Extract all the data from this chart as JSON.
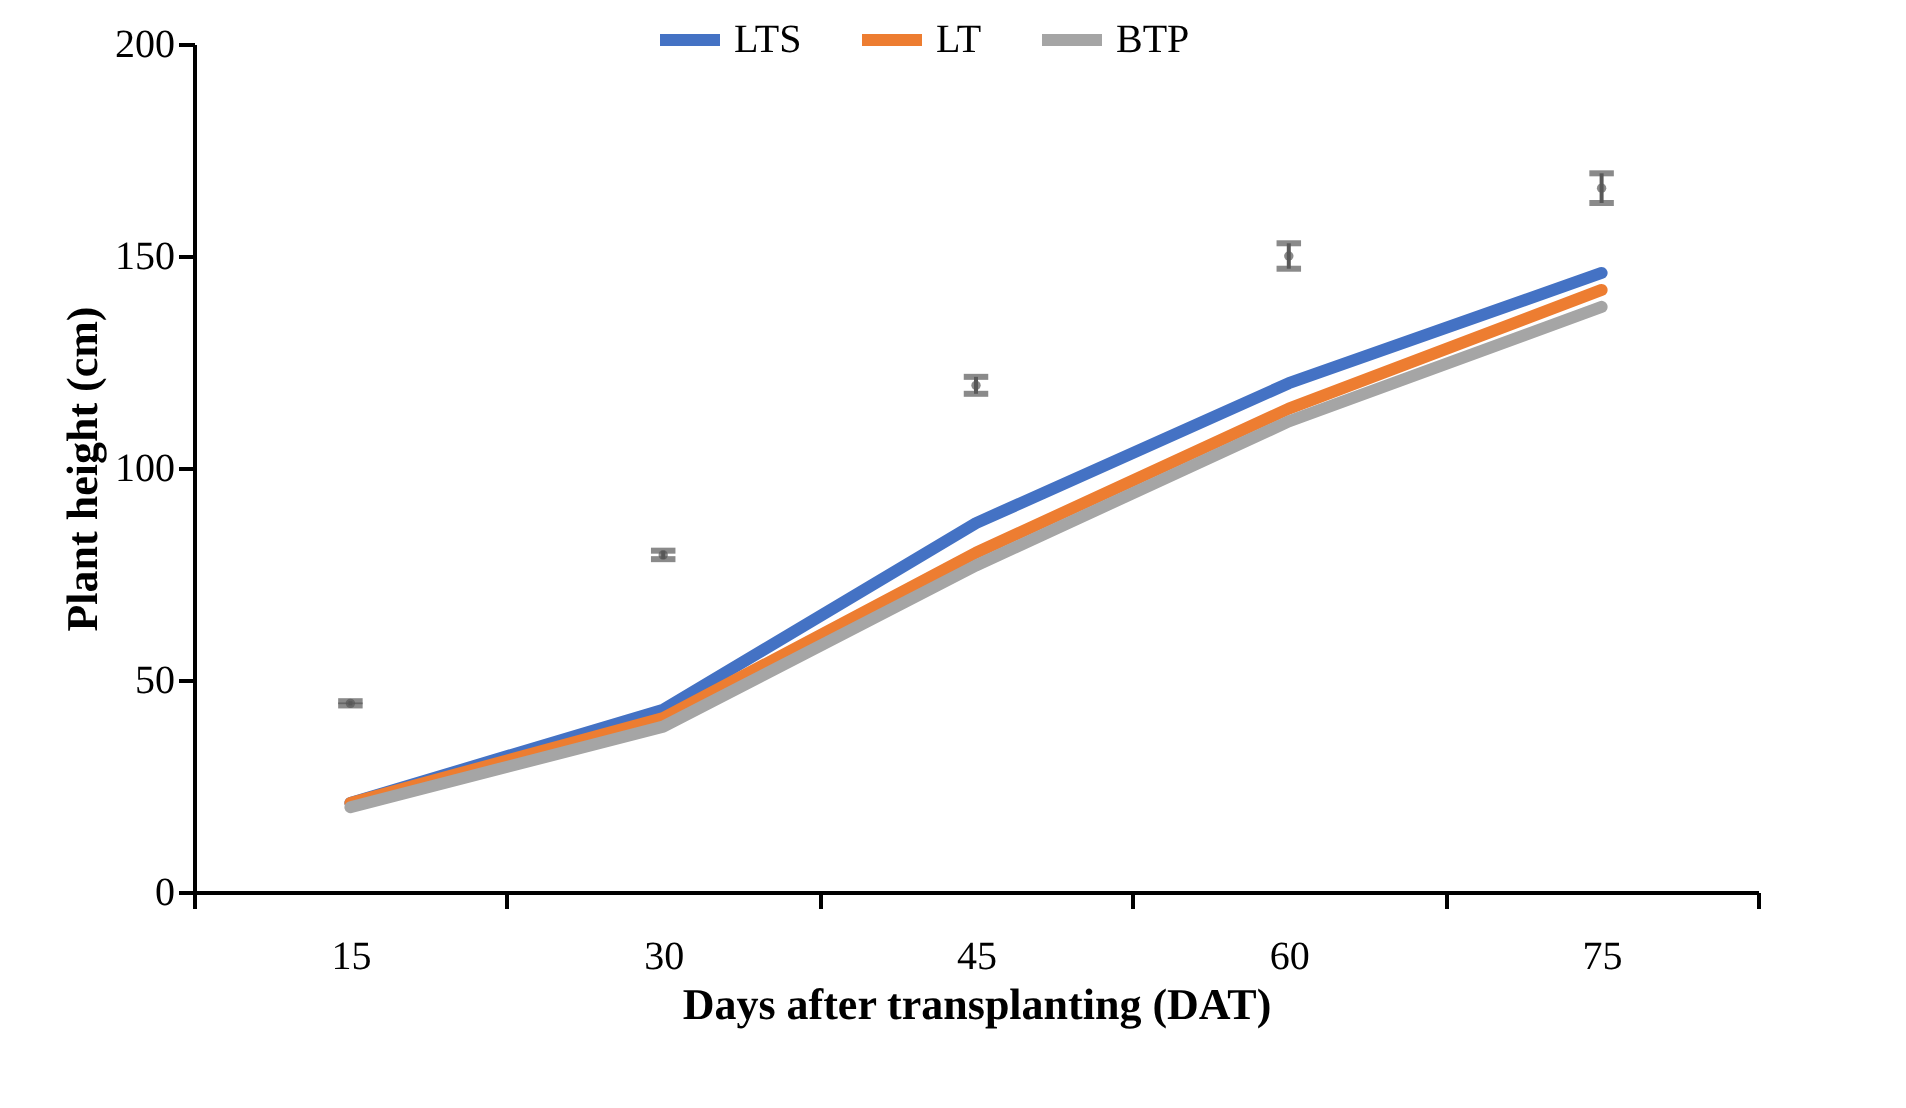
{
  "chart_data": {
    "type": "line",
    "xlabel": "Days after transplanting (DAT)",
    "ylabel": "Plant height (cm)",
    "categories": [
      "15",
      "30",
      "45",
      "60",
      "75"
    ],
    "series": [
      {
        "name": "LTS",
        "color": "#4472c4",
        "values": [
          21,
          43,
          87,
          120,
          146
        ]
      },
      {
        "name": "LT",
        "color": "#ed7d31",
        "values": [
          21,
          41,
          80,
          114,
          142
        ]
      },
      {
        "name": "BTP",
        "color": "#a5a5a5",
        "values": [
          20,
          39,
          77,
          111,
          138
        ]
      },
      {
        "type": "scatter",
        "color": "#595959",
        "values": [
          44.5,
          79.5,
          119.5,
          150,
          166
        ],
        "errors": [
          0.5,
          1,
          2,
          3,
          3.5
        ]
      }
    ],
    "ylim": [
      0,
      200
    ],
    "yticks": [
      0,
      50,
      100,
      150,
      200
    ],
    "grid": false,
    "legend": "top"
  }
}
